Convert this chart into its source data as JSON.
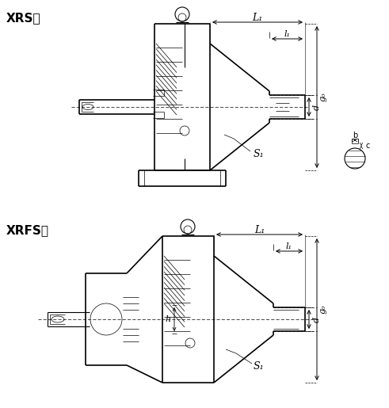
{
  "label_xrs": "XRS型",
  "label_xrfs": "XRFS型",
  "label_L1": "L₁",
  "label_l1": "l₁",
  "label_d": "d",
  "label_g0": "g₀",
  "label_S1": "S₁",
  "label_b": "b",
  "label_c": "c",
  "label_h": "h",
  "bg_color": "#ffffff",
  "line_color": "#000000"
}
